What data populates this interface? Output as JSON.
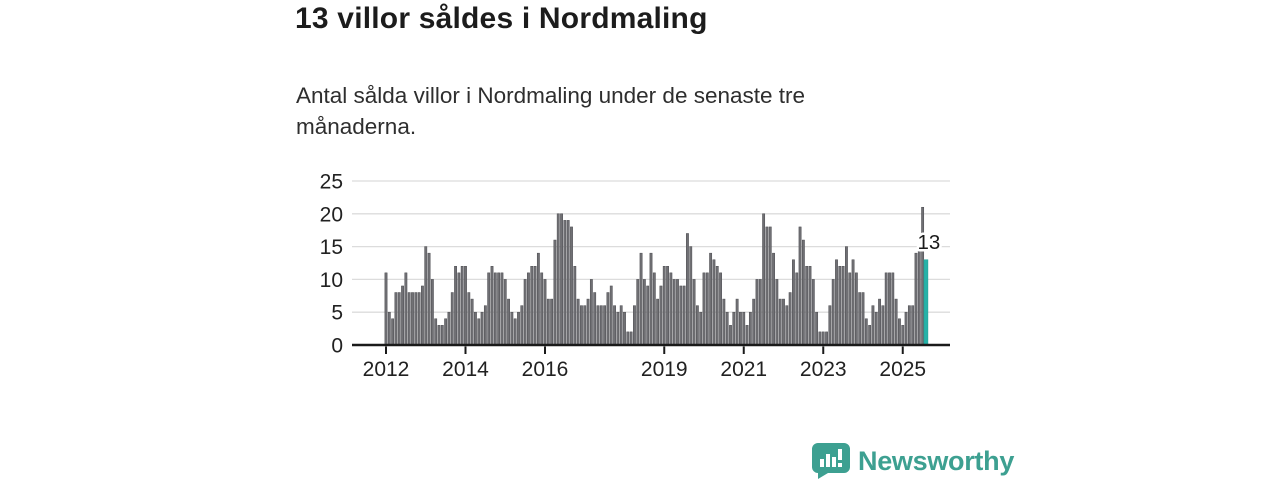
{
  "header": {
    "title": "13 villor såldes i Nordmaling",
    "subtitle": "Antal sålda villor i Nordmaling under de senaste tre månaderna."
  },
  "chart_data": {
    "type": "bar",
    "title": "13 villor såldes i Nordmaling",
    "subtitle": "Antal sålda villor i Nordmaling under de senaste tre månaderna.",
    "x_unit": "month",
    "x_start": "2012-01",
    "x_end": "2025-08",
    "ylim": [
      0,
      25
    ],
    "y_ticks": [
      0,
      5,
      10,
      15,
      20,
      25
    ],
    "grid": "horizontal",
    "x_ticks": [
      {
        "label": "2012",
        "month_index": 0
      },
      {
        "label": "2014",
        "month_index": 24
      },
      {
        "label": "2016",
        "month_index": 48
      },
      {
        "label": "2019",
        "month_index": 84
      },
      {
        "label": "2021",
        "month_index": 108
      },
      {
        "label": "2023",
        "month_index": 132
      },
      {
        "label": "2025",
        "month_index": 156
      }
    ],
    "values": [
      11,
      5,
      4,
      8,
      8,
      9,
      11,
      8,
      8,
      8,
      8,
      9,
      15,
      14,
      10,
      4,
      3,
      3,
      4,
      5,
      8,
      12,
      11,
      12,
      12,
      8,
      7,
      5,
      4,
      5,
      6,
      11,
      12,
      11,
      11,
      11,
      10,
      7,
      5,
      4,
      5,
      6,
      10,
      11,
      12,
      12,
      14,
      11,
      10,
      7,
      7,
      16,
      20,
      20,
      19,
      19,
      18,
      12,
      7,
      6,
      6,
      7,
      10,
      8,
      6,
      6,
      6,
      8,
      9,
      6,
      5,
      6,
      5,
      2,
      2,
      6,
      10,
      14,
      10,
      9,
      14,
      11,
      7,
      9,
      12,
      12,
      11,
      10,
      10,
      9,
      9,
      17,
      15,
      10,
      6,
      5,
      11,
      11,
      14,
      13,
      12,
      11,
      7,
      5,
      3,
      5,
      7,
      5,
      5,
      3,
      5,
      7,
      10,
      10,
      20,
      18,
      18,
      14,
      10,
      7,
      7,
      6,
      8,
      13,
      11,
      18,
      16,
      12,
      12,
      10,
      5,
      2,
      2,
      2,
      6,
      10,
      13,
      12,
      12,
      15,
      11,
      13,
      11,
      8,
      8,
      4,
      3,
      6,
      5,
      7,
      6,
      11,
      11,
      11,
      7,
      4,
      3,
      5,
      6,
      6,
      14,
      15,
      21,
      13
    ],
    "bar_color": "#707074",
    "bar_edge_color": "#4c4c50",
    "highlight_color": "#25b2a8",
    "highlight_edge_color": "#1b9a91",
    "highlight_last": true,
    "annotation": {
      "text": "13",
      "value": 13,
      "position": "last-bar"
    },
    "axis_color": "#1a1a1a",
    "grid_color": "#dcdcdc",
    "tick_label_color": "#212121"
  },
  "branding": {
    "logo_text": "Newsworthy",
    "logo_color": "#3da091"
  }
}
